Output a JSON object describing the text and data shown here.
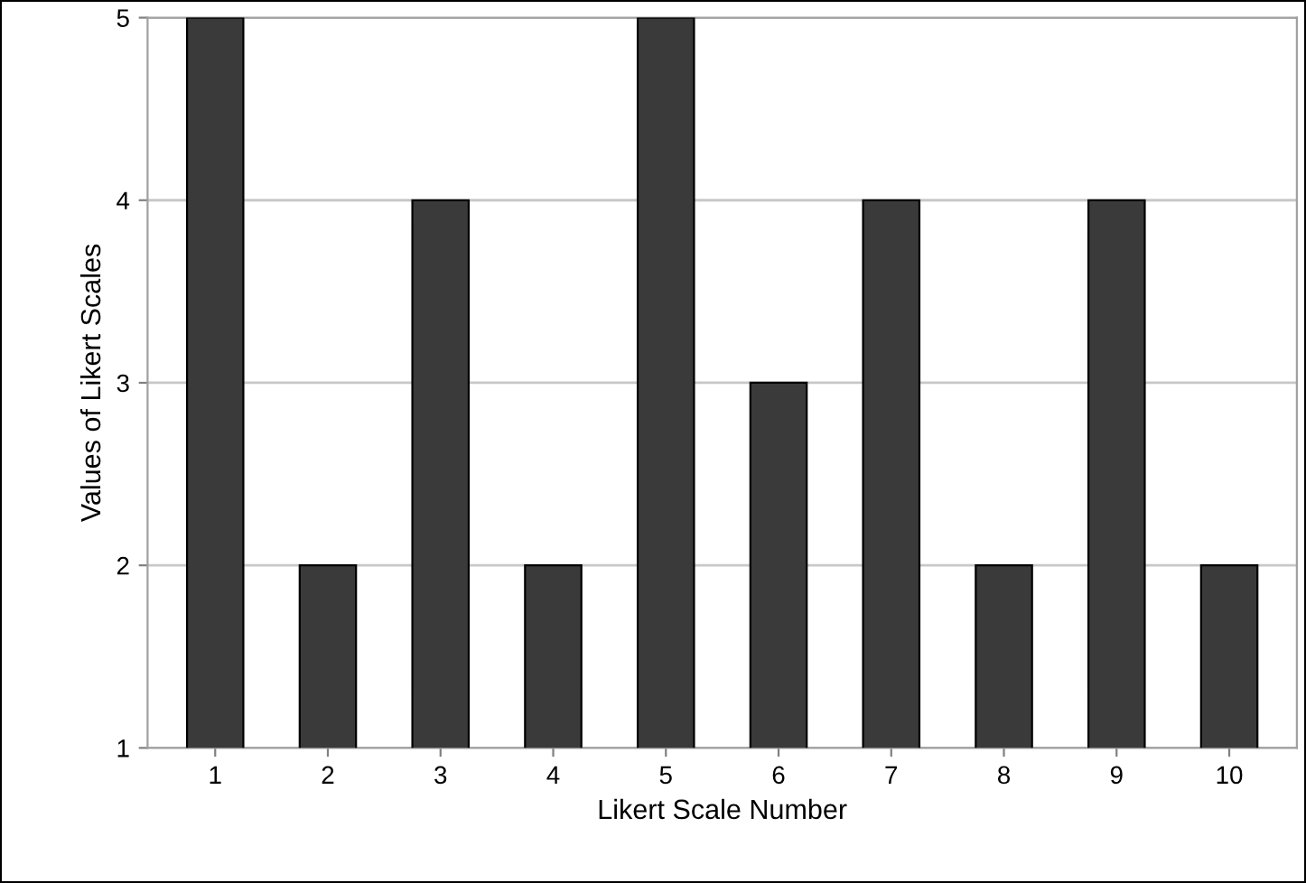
{
  "chart_data": {
    "type": "bar",
    "xlabel": "Likert Scale Number",
    "ylabel": "Values of Likert Scales",
    "categories": [
      "1",
      "2",
      "3",
      "4",
      "5",
      "6",
      "7",
      "8",
      "9",
      "10"
    ],
    "values": [
      5,
      2,
      4,
      2,
      5,
      3,
      4,
      2,
      4,
      2
    ],
    "color": "#3a3a3a",
    "ylim": [
      1,
      5
    ],
    "yticks": [
      1,
      2,
      3,
      4,
      5
    ],
    "grid": "y"
  }
}
